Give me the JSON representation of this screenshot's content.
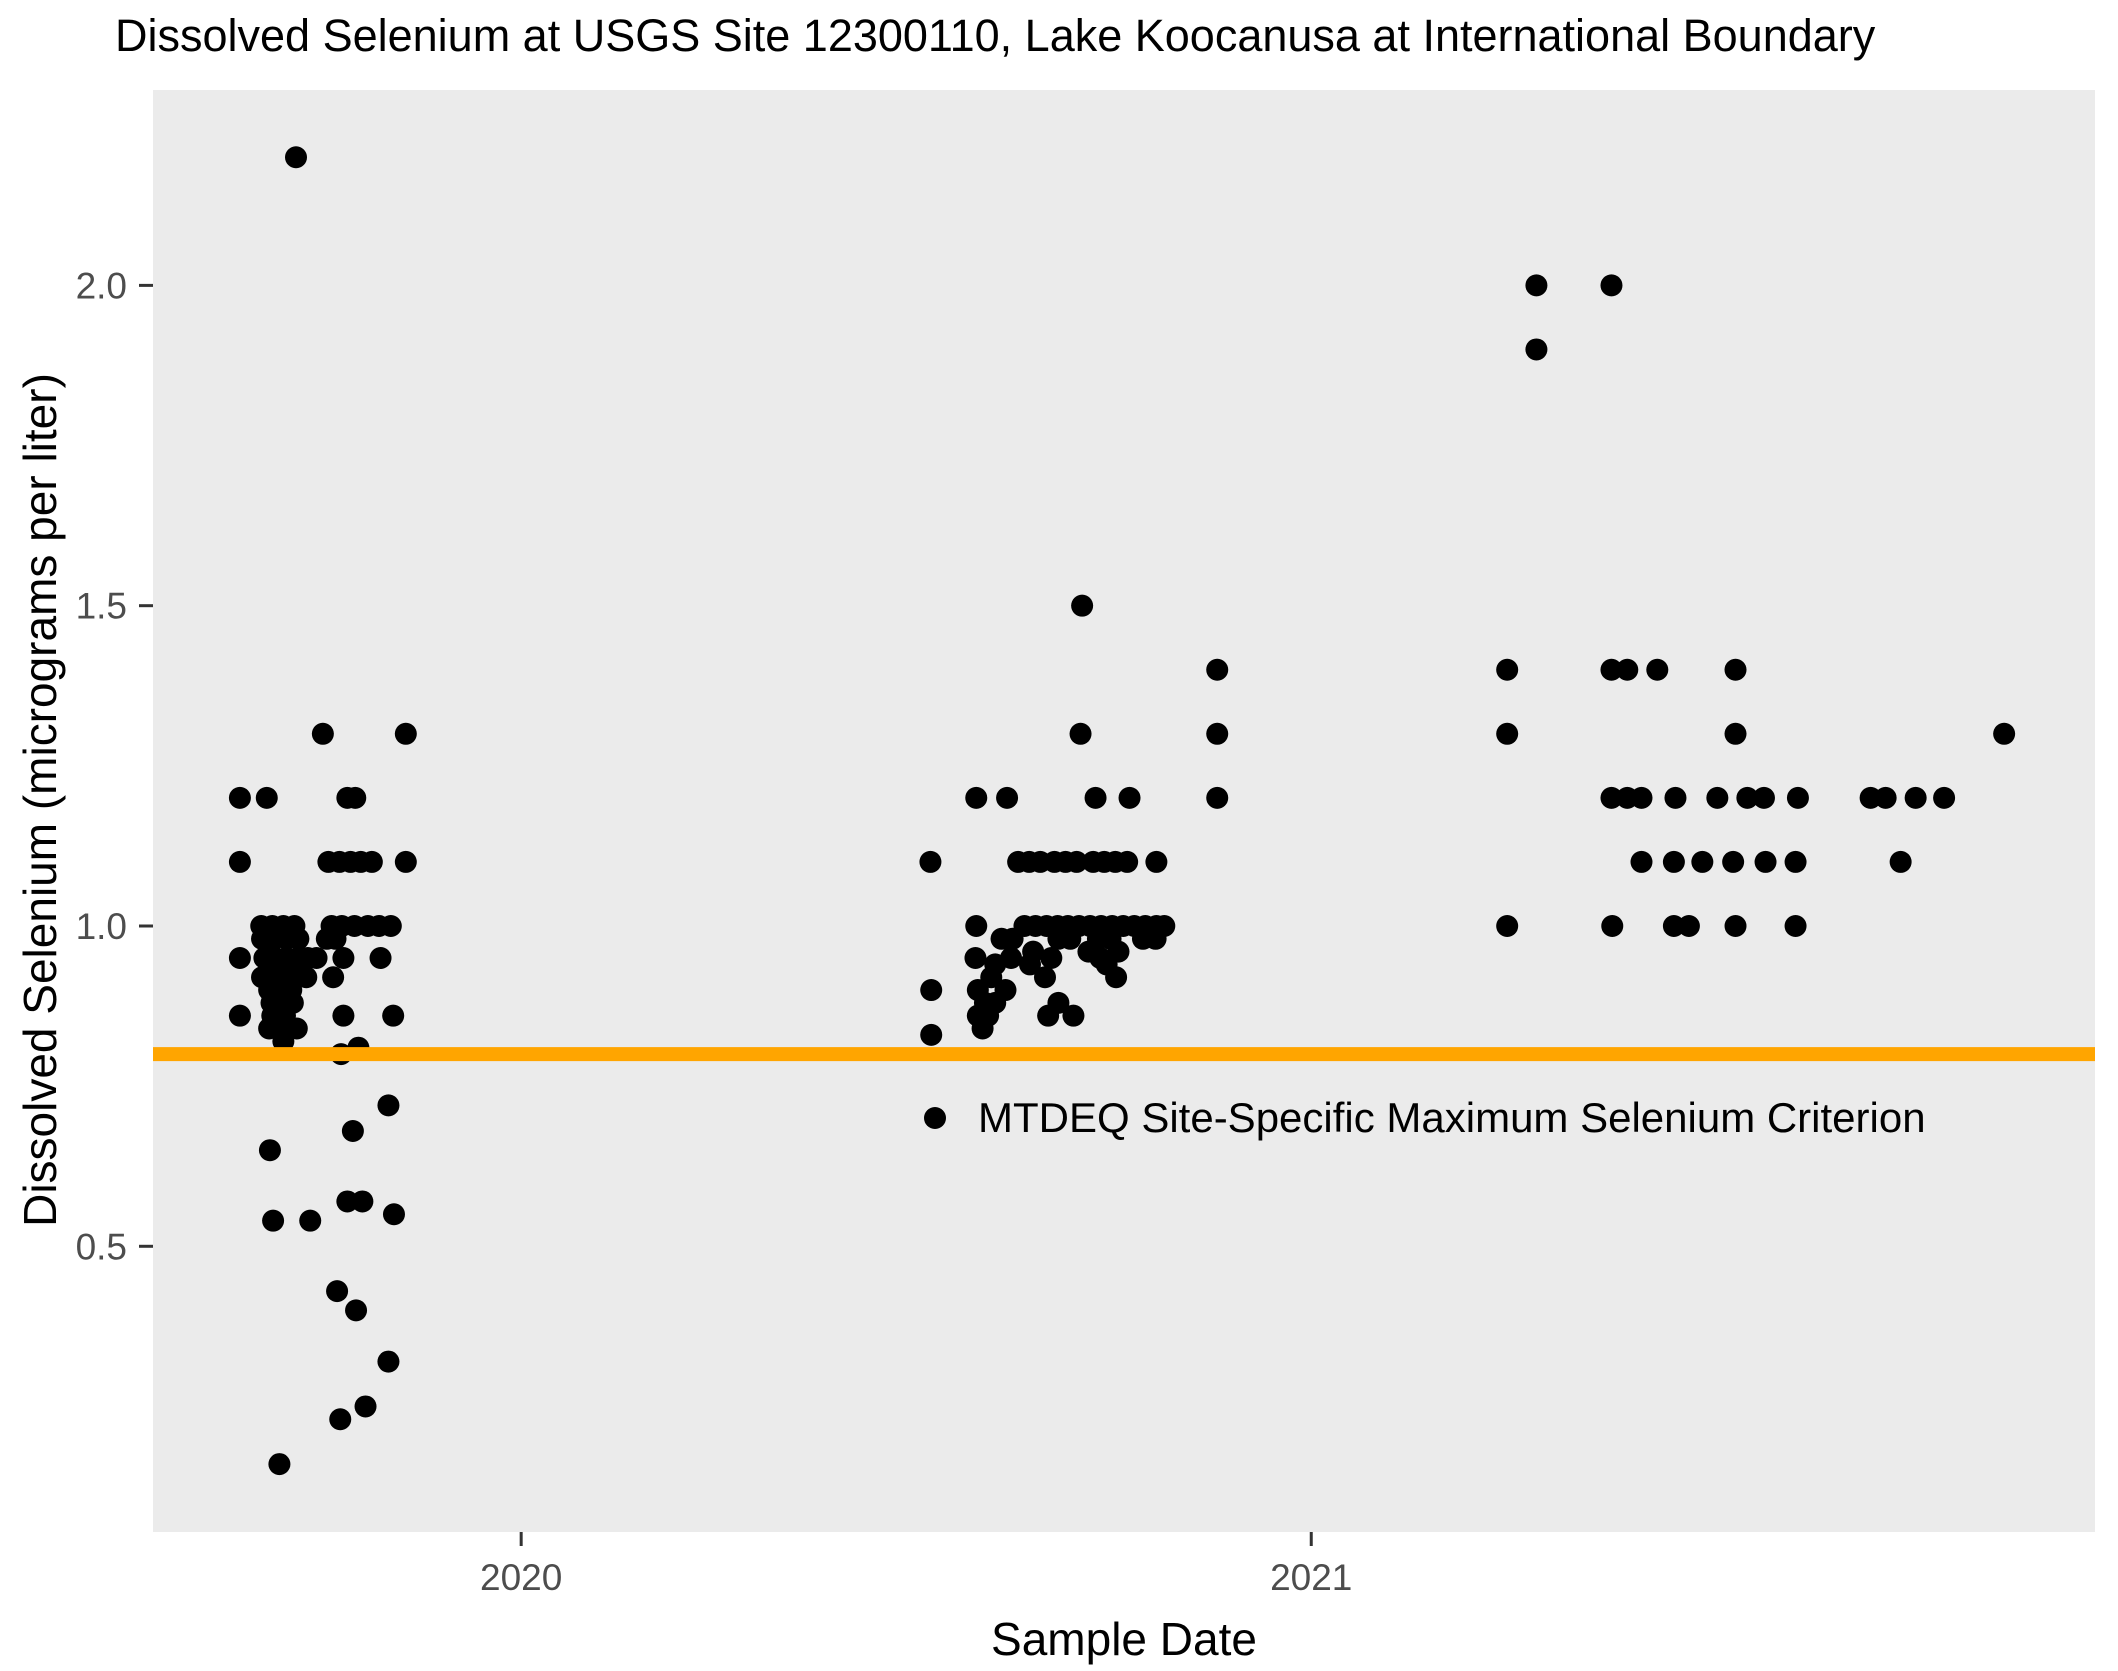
{
  "chart_data": {
    "type": "scatter",
    "title": "Dissolved Selenium at USGS Site 12300110, Lake Koocanusa at International Boundary",
    "xlabel": "Sample Date",
    "ylabel": "Dissolved Selenium (micrograms per liter)",
    "units": "micrograms per liter",
    "grid": false,
    "panel_bg": "#EBEBEB",
    "point_color": "#000000",
    "point_radius_px": 11,
    "tick_label_color": "#4D4D4D",
    "tick_mark_color": "#333333",
    "x_domain": [
      2019.534,
      2021.992
    ],
    "y_domain": [
      0.054,
      2.305
    ],
    "x_ticks": [
      {
        "value": 2020,
        "label": "2020"
      },
      {
        "value": 2021,
        "label": "2021"
      }
    ],
    "y_ticks": [
      {
        "value": 2.0,
        "label": "2.0"
      },
      {
        "value": 1.5,
        "label": "1.5"
      },
      {
        "value": 1.0,
        "label": "1.0"
      },
      {
        "value": 0.5,
        "label": "0.5"
      }
    ],
    "reference_line": {
      "value": 0.8,
      "color": "#FFA500",
      "thickness_px": 14,
      "label": "MTDEQ Site-Specific Maximum Selenium Criterion"
    },
    "legend": {
      "position": "inside",
      "marker": "point"
    },
    "points": [
      [
        2019.715,
        2.2
      ],
      [
        2019.749,
        1.3
      ],
      [
        2019.854,
        1.3
      ],
      [
        2019.644,
        1.2
      ],
      [
        2019.678,
        1.2
      ],
      [
        2019.78,
        1.2
      ],
      [
        2019.79,
        1.2
      ],
      [
        2019.644,
        1.1
      ],
      [
        2019.756,
        1.1
      ],
      [
        2019.77,
        1.1
      ],
      [
        2019.784,
        1.1
      ],
      [
        2019.797,
        1.1
      ],
      [
        2019.811,
        1.1
      ],
      [
        2019.854,
        1.1
      ],
      [
        2019.671,
        1.0
      ],
      [
        2019.685,
        1.0
      ],
      [
        2019.699,
        1.0
      ],
      [
        2019.713,
        1.0
      ],
      [
        2019.76,
        1.0
      ],
      [
        2019.773,
        1.0
      ],
      [
        2019.789,
        1.0
      ],
      [
        2019.806,
        1.0
      ],
      [
        2019.82,
        1.0
      ],
      [
        2019.835,
        1.0
      ],
      [
        2019.672,
        0.98
      ],
      [
        2019.687,
        0.98
      ],
      [
        2019.703,
        0.98
      ],
      [
        2019.718,
        0.98
      ],
      [
        2019.754,
        0.98
      ],
      [
        2019.765,
        0.98
      ],
      [
        2019.644,
        0.95
      ],
      [
        2019.675,
        0.95
      ],
      [
        2019.689,
        0.95
      ],
      [
        2019.703,
        0.95
      ],
      [
        2019.717,
        0.95
      ],
      [
        2019.73,
        0.95
      ],
      [
        2019.741,
        0.95
      ],
      [
        2019.775,
        0.95
      ],
      [
        2019.822,
        0.95
      ],
      [
        2019.672,
        0.92
      ],
      [
        2019.686,
        0.92
      ],
      [
        2019.701,
        0.92
      ],
      [
        2019.715,
        0.92
      ],
      [
        2019.728,
        0.92
      ],
      [
        2019.762,
        0.92
      ],
      [
        2019.681,
        0.9
      ],
      [
        2019.695,
        0.9
      ],
      [
        2019.709,
        0.9
      ],
      [
        2019.684,
        0.88
      ],
      [
        2019.698,
        0.88
      ],
      [
        2019.711,
        0.88
      ],
      [
        2019.644,
        0.86
      ],
      [
        2019.685,
        0.86
      ],
      [
        2019.701,
        0.86
      ],
      [
        2019.775,
        0.86
      ],
      [
        2019.838,
        0.86
      ],
      [
        2019.681,
        0.84
      ],
      [
        2019.695,
        0.84
      ],
      [
        2019.716,
        0.84
      ],
      [
        2019.699,
        0.82
      ],
      [
        2019.794,
        0.81
      ],
      [
        2019.772,
        0.8
      ],
      [
        2019.832,
        0.72
      ],
      [
        2019.787,
        0.68
      ],
      [
        2019.682,
        0.65
      ],
      [
        2019.78,
        0.57
      ],
      [
        2019.799,
        0.57
      ],
      [
        2019.839,
        0.55
      ],
      [
        2019.686,
        0.54
      ],
      [
        2019.733,
        0.54
      ],
      [
        2019.767,
        0.43
      ],
      [
        2019.791,
        0.4
      ],
      [
        2019.832,
        0.32
      ],
      [
        2019.803,
        0.25
      ],
      [
        2019.771,
        0.23
      ],
      [
        2019.694,
        0.16
      ],
      [
        2020.71,
        1.5
      ],
      [
        2020.881,
        1.4
      ],
      [
        2020.708,
        1.3
      ],
      [
        2020.881,
        1.3
      ],
      [
        2020.576,
        1.2
      ],
      [
        2020.615,
        1.2
      ],
      [
        2020.727,
        1.2
      ],
      [
        2020.77,
        1.2
      ],
      [
        2020.881,
        1.2
      ],
      [
        2020.518,
        1.1
      ],
      [
        2020.629,
        1.1
      ],
      [
        2020.643,
        1.1
      ],
      [
        2020.657,
        1.1
      ],
      [
        2020.675,
        1.1
      ],
      [
        2020.689,
        1.1
      ],
      [
        2020.703,
        1.1
      ],
      [
        2020.724,
        1.1
      ],
      [
        2020.738,
        1.1
      ],
      [
        2020.752,
        1.1
      ],
      [
        2020.767,
        1.1
      ],
      [
        2020.804,
        1.1
      ],
      [
        2020.576,
        1.0
      ],
      [
        2020.637,
        1.0
      ],
      [
        2020.651,
        1.0
      ],
      [
        2020.665,
        1.0
      ],
      [
        2020.679,
        1.0
      ],
      [
        2020.692,
        1.0
      ],
      [
        2020.706,
        1.0
      ],
      [
        2020.72,
        1.0
      ],
      [
        2020.734,
        1.0
      ],
      [
        2020.748,
        1.0
      ],
      [
        2020.762,
        1.0
      ],
      [
        2020.776,
        1.0
      ],
      [
        2020.79,
        1.0
      ],
      [
        2020.804,
        1.0
      ],
      [
        2020.814,
        1.0
      ],
      [
        2020.608,
        0.98
      ],
      [
        2020.622,
        0.98
      ],
      [
        2020.68,
        0.98
      ],
      [
        2020.695,
        0.98
      ],
      [
        2020.73,
        0.98
      ],
      [
        2020.746,
        0.98
      ],
      [
        2020.787,
        0.98
      ],
      [
        2020.803,
        0.98
      ],
      [
        2020.648,
        0.96
      ],
      [
        2020.718,
        0.96
      ],
      [
        2020.756,
        0.96
      ],
      [
        2020.575,
        0.95
      ],
      [
        2020.62,
        0.95
      ],
      [
        2020.671,
        0.95
      ],
      [
        2020.733,
        0.95
      ],
      [
        2020.6,
        0.94
      ],
      [
        2020.644,
        0.94
      ],
      [
        2020.741,
        0.94
      ],
      [
        2020.595,
        0.92
      ],
      [
        2020.663,
        0.92
      ],
      [
        2020.753,
        0.92
      ],
      [
        2020.519,
        0.9
      ],
      [
        2020.578,
        0.9
      ],
      [
        2020.613,
        0.9
      ],
      [
        2020.587,
        0.88
      ],
      [
        2020.6,
        0.88
      ],
      [
        2020.68,
        0.88
      ],
      [
        2020.578,
        0.86
      ],
      [
        2020.591,
        0.86
      ],
      [
        2020.667,
        0.86
      ],
      [
        2020.699,
        0.86
      ],
      [
        2020.584,
        0.84
      ],
      [
        2020.519,
        0.83
      ],
      [
        2021.285,
        2.0
      ],
      [
        2021.38,
        2.0
      ],
      [
        2021.285,
        1.9
      ],
      [
        2021.248,
        1.4
      ],
      [
        2021.38,
        1.4
      ],
      [
        2021.4,
        1.4
      ],
      [
        2021.438,
        1.4
      ],
      [
        2021.537,
        1.4
      ],
      [
        2021.248,
        1.3
      ],
      [
        2021.537,
        1.3
      ],
      [
        2021.877,
        1.3
      ],
      [
        2021.38,
        1.2
      ],
      [
        2021.4,
        1.2
      ],
      [
        2021.418,
        1.2
      ],
      [
        2021.461,
        1.2
      ],
      [
        2021.514,
        1.2
      ],
      [
        2021.552,
        1.2
      ],
      [
        2021.573,
        1.2
      ],
      [
        2021.616,
        1.2
      ],
      [
        2021.708,
        1.2
      ],
      [
        2021.727,
        1.2
      ],
      [
        2021.765,
        1.2
      ],
      [
        2021.801,
        1.2
      ],
      [
        2021.418,
        1.1
      ],
      [
        2021.459,
        1.1
      ],
      [
        2021.495,
        1.1
      ],
      [
        2021.534,
        1.1
      ],
      [
        2021.575,
        1.1
      ],
      [
        2021.613,
        1.1
      ],
      [
        2021.746,
        1.1
      ],
      [
        2021.248,
        1.0
      ],
      [
        2021.381,
        1.0
      ],
      [
        2021.459,
        1.0
      ],
      [
        2021.478,
        1.0
      ],
      [
        2021.537,
        1.0
      ],
      [
        2021.613,
        1.0
      ]
    ]
  }
}
